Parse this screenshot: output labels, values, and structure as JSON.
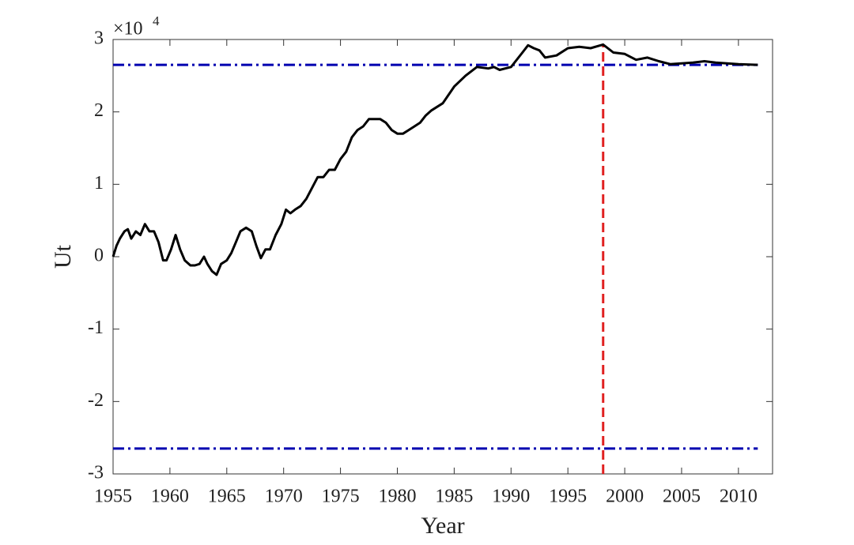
{
  "chart_data": {
    "type": "line",
    "x_label": "Year",
    "y_label": "Ut",
    "y_multiplier_base": "×10",
    "y_multiplier_exponent": "4",
    "x": [
      1955.0,
      1955.3,
      1955.6,
      1956.0,
      1956.3,
      1956.6,
      1957.0,
      1957.4,
      1957.8,
      1958.2,
      1958.6,
      1959.0,
      1959.4,
      1959.7,
      1960.1,
      1960.5,
      1960.9,
      1961.3,
      1961.8,
      1962.2,
      1962.6,
      1963.0,
      1963.3,
      1963.7,
      1964.1,
      1964.5,
      1965.0,
      1965.4,
      1965.8,
      1966.2,
      1966.7,
      1967.2,
      1967.6,
      1968.0,
      1968.4,
      1968.8,
      1969.3,
      1969.8,
      1970.2,
      1970.6,
      1971.0,
      1971.5,
      1972.0,
      1972.5,
      1973.0,
      1973.5,
      1974.0,
      1974.5,
      1975.0,
      1975.5,
      1976.0,
      1976.5,
      1977.0,
      1977.5,
      1978.0,
      1978.5,
      1979.0,
      1979.5,
      1980.0,
      1980.5,
      1981.0,
      1981.5,
      1982.0,
      1982.5,
      1983.0,
      1984.0,
      1985.0,
      1986.0,
      1987.0,
      1988.0,
      1988.5,
      1989.0,
      1990.0,
      1991.0,
      1991.5,
      1992.0,
      1992.5,
      1993.0,
      1994.0,
      1995.0,
      1996.0,
      1997.0,
      1998.1,
      1999.0,
      2000.0,
      2001.0,
      2002.0,
      2003.0,
      2004.0,
      2005.0,
      2006.0,
      2007.0,
      2008.0,
      2009.0,
      2010.0,
      2011.7
    ],
    "values": [
      0.0,
      0.15,
      0.25,
      0.35,
      0.38,
      0.25,
      0.35,
      0.3,
      0.45,
      0.35,
      0.35,
      0.2,
      -0.05,
      -0.05,
      0.1,
      0.3,
      0.1,
      -0.05,
      -0.12,
      -0.12,
      -0.1,
      0.0,
      -0.1,
      -0.2,
      -0.25,
      -0.1,
      -0.05,
      0.05,
      0.2,
      0.35,
      0.4,
      0.35,
      0.15,
      -0.02,
      0.1,
      0.1,
      0.3,
      0.45,
      0.65,
      0.6,
      0.65,
      0.7,
      0.8,
      0.95,
      1.1,
      1.1,
      1.2,
      1.2,
      1.35,
      1.45,
      1.65,
      1.75,
      1.8,
      1.9,
      1.9,
      1.9,
      1.85,
      1.75,
      1.7,
      1.7,
      1.75,
      1.8,
      1.85,
      1.95,
      2.02,
      2.12,
      2.35,
      2.5,
      2.62,
      2.6,
      2.62,
      2.58,
      2.62,
      2.82,
      2.92,
      2.88,
      2.85,
      2.75,
      2.78,
      2.88,
      2.9,
      2.88,
      2.93,
      2.82,
      2.8,
      2.72,
      2.75,
      2.7,
      2.66,
      2.67,
      2.68,
      2.7,
      2.68,
      2.67,
      2.66,
      2.65
    ],
    "line_color": "#000000",
    "hlines": [
      2.65,
      -2.65
    ],
    "hline_color": "#0000b0",
    "vline": 1998.1,
    "vline_color": "#e02020",
    "xlim": [
      1955,
      2013
    ],
    "ylim": [
      -3,
      3
    ],
    "xticks": [
      1955,
      1960,
      1965,
      1970,
      1975,
      1980,
      1985,
      1990,
      1995,
      2000,
      2005,
      2010
    ],
    "yticks": [
      -3,
      -2,
      -1,
      0,
      1,
      2,
      3
    ]
  }
}
